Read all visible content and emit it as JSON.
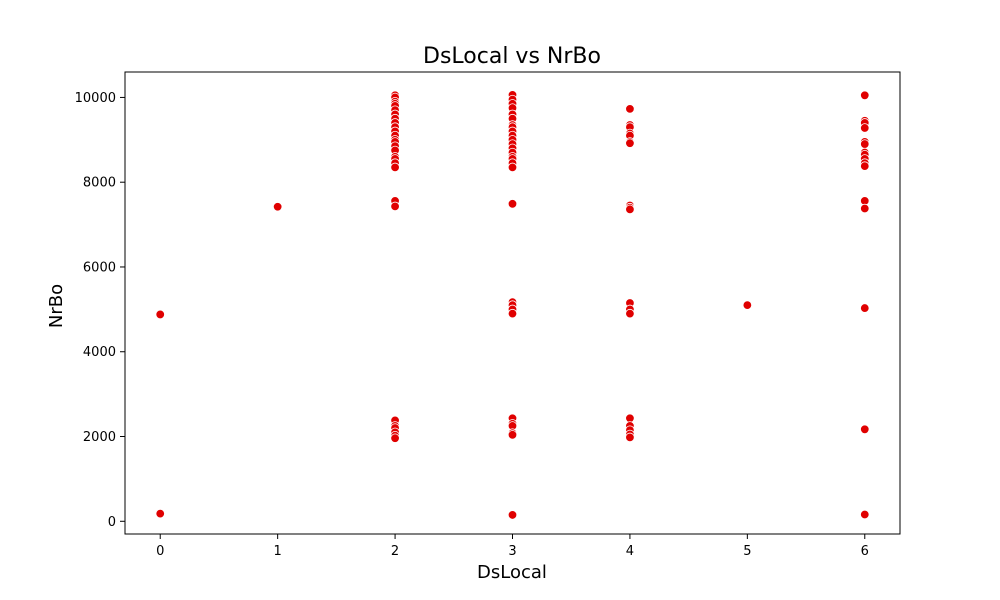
{
  "chart_data": {
    "type": "scatter",
    "title": "DsLocal vs NrBo",
    "xlabel": "DsLocal",
    "ylabel": "NrBo",
    "xlim": [
      -0.3,
      6.3
    ],
    "ylim": [
      -300,
      10600
    ],
    "x_ticks": [
      0,
      1,
      2,
      3,
      4,
      5,
      6
    ],
    "y_ticks": [
      0,
      2000,
      4000,
      6000,
      8000,
      10000
    ],
    "grid": false,
    "colors": {
      "point": "#e00000",
      "point_faint": "#f2b8b8"
    },
    "points": [
      {
        "x": 0,
        "y": 4880
      },
      {
        "x": 0,
        "y": 180
      },
      {
        "x": 1,
        "y": 7420
      },
      {
        "x": 2,
        "y": 10050
      },
      {
        "x": 2,
        "y": 10000
      },
      {
        "x": 2,
        "y": 9900
      },
      {
        "x": 2,
        "y": 9850
      },
      {
        "x": 2,
        "y": 9800
      },
      {
        "x": 2,
        "y": 9700
      },
      {
        "x": 2,
        "y": 9600
      },
      {
        "x": 2,
        "y": 9500
      },
      {
        "x": 2,
        "y": 9400
      },
      {
        "x": 2,
        "y": 9300
      },
      {
        "x": 2,
        "y": 9200
      },
      {
        "x": 2,
        "y": 9100
      },
      {
        "x": 2,
        "y": 9000
      },
      {
        "x": 2,
        "y": 8950
      },
      {
        "x": 2,
        "y": 8850
      },
      {
        "x": 2,
        "y": 8750
      },
      {
        "x": 2,
        "y": 8600
      },
      {
        "x": 2,
        "y": 8550
      },
      {
        "x": 2,
        "y": 8450
      },
      {
        "x": 2,
        "y": 8350
      },
      {
        "x": 2,
        "y": 7560
      },
      {
        "x": 2,
        "y": 7430
      },
      {
        "x": 2,
        "y": 2380
      },
      {
        "x": 2,
        "y": 2250
      },
      {
        "x": 2,
        "y": 2200
      },
      {
        "x": 2,
        "y": 2100
      },
      {
        "x": 2,
        "y": 2020
      },
      {
        "x": 2,
        "y": 1960
      },
      {
        "x": 3,
        "y": 10060
      },
      {
        "x": 3,
        "y": 9950
      },
      {
        "x": 3,
        "y": 9850
      },
      {
        "x": 3,
        "y": 9750
      },
      {
        "x": 3,
        "y": 9600
      },
      {
        "x": 3,
        "y": 9500
      },
      {
        "x": 3,
        "y": 9350
      },
      {
        "x": 3,
        "y": 9300
      },
      {
        "x": 3,
        "y": 9200
      },
      {
        "x": 3,
        "y": 9100
      },
      {
        "x": 3,
        "y": 9000
      },
      {
        "x": 3,
        "y": 8900
      },
      {
        "x": 3,
        "y": 8800
      },
      {
        "x": 3,
        "y": 8700
      },
      {
        "x": 3,
        "y": 8600
      },
      {
        "x": 3,
        "y": 8550
      },
      {
        "x": 3,
        "y": 8450
      },
      {
        "x": 3,
        "y": 8350
      },
      {
        "x": 3,
        "y": 7490
      },
      {
        "x": 3,
        "y": 5170
      },
      {
        "x": 3,
        "y": 5100
      },
      {
        "x": 3,
        "y": 5000
      },
      {
        "x": 3,
        "y": 4900
      },
      {
        "x": 3,
        "y": 2430
      },
      {
        "x": 3,
        "y": 2300
      },
      {
        "x": 3,
        "y": 2250
      },
      {
        "x": 3,
        "y": 2080
      },
      {
        "x": 3,
        "y": 2040
      },
      {
        "x": 3,
        "y": 150
      },
      {
        "x": 4,
        "y": 9730
      },
      {
        "x": 4,
        "y": 9350
      },
      {
        "x": 4,
        "y": 9300
      },
      {
        "x": 4,
        "y": 9150
      },
      {
        "x": 4,
        "y": 9100
      },
      {
        "x": 4,
        "y": 8950
      },
      {
        "x": 4,
        "y": 8920
      },
      {
        "x": 4,
        "y": 7450
      },
      {
        "x": 4,
        "y": 7400
      },
      {
        "x": 4,
        "y": 7360
      },
      {
        "x": 4,
        "y": 5150
      },
      {
        "x": 4,
        "y": 5000
      },
      {
        "x": 4,
        "y": 4900
      },
      {
        "x": 4,
        "y": 2430
      },
      {
        "x": 4,
        "y": 2250
      },
      {
        "x": 4,
        "y": 2150
      },
      {
        "x": 4,
        "y": 2050
      },
      {
        "x": 4,
        "y": 1980
      },
      {
        "x": 5,
        "y": 5100
      },
      {
        "x": 6,
        "y": 10050
      },
      {
        "x": 6,
        "y": 9450
      },
      {
        "x": 6,
        "y": 9400
      },
      {
        "x": 6,
        "y": 9280
      },
      {
        "x": 6,
        "y": 8950
      },
      {
        "x": 6,
        "y": 8900
      },
      {
        "x": 6,
        "y": 8700
      },
      {
        "x": 6,
        "y": 8650
      },
      {
        "x": 6,
        "y": 8550
      },
      {
        "x": 6,
        "y": 8450
      },
      {
        "x": 6,
        "y": 8380
      },
      {
        "x": 6,
        "y": 7560
      },
      {
        "x": 6,
        "y": 7380
      },
      {
        "x": 6,
        "y": 5030
      },
      {
        "x": 6,
        "y": 2170
      },
      {
        "x": 6,
        "y": 160
      }
    ]
  }
}
